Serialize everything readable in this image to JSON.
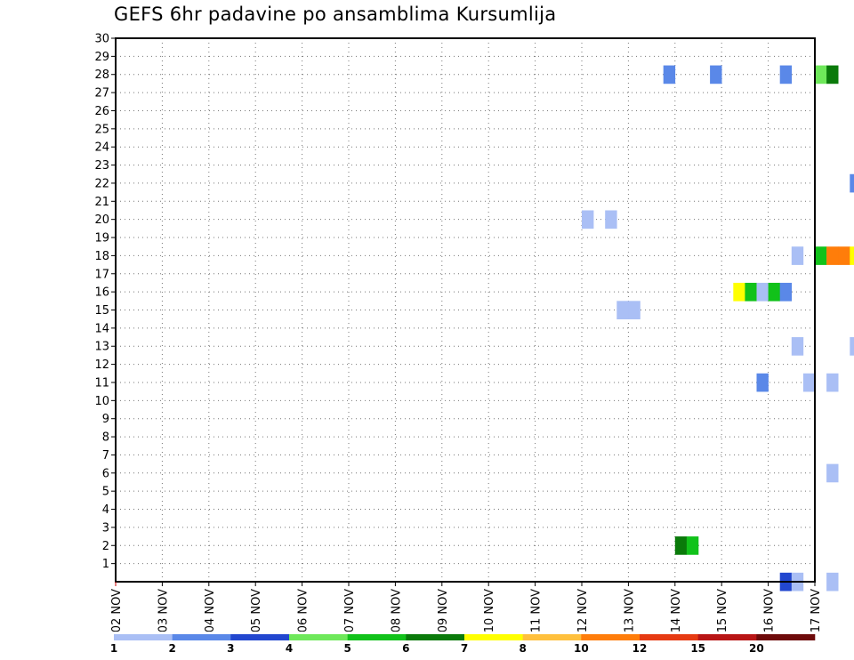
{
  "chart_data": {
    "type": "heatmap",
    "title": "GEFS 6hr padavine po ansamblima Kursumlija",
    "x_tick_labels": [
      "02 NOV",
      "03 NOV",
      "04 NOV",
      "05 NOV",
      "06 NOV",
      "07 NOV",
      "08 NOV",
      "09 NOV",
      "10 NOV",
      "11 NOV",
      "12 NOV",
      "13 NOV",
      "14 NOV",
      "15 NOV",
      "16 NOV",
      "17 NOV"
    ],
    "x_range_days": [
      0,
      15
    ],
    "y_tick_labels": [
      "1",
      "2",
      "3",
      "4",
      "5",
      "6",
      "7",
      "8",
      "9",
      "10",
      "11",
      "12",
      "13",
      "14",
      "15",
      "16",
      "17",
      "18",
      "19",
      "20",
      "21",
      "22",
      "23",
      "24",
      "25",
      "26",
      "27",
      "28",
      "29",
      "30"
    ],
    "y_range": [
      0,
      30
    ],
    "grid": true,
    "colorbar": {
      "bounds": [
        "1",
        "2",
        "3",
        "4",
        "5",
        "6",
        "7",
        "8",
        "10",
        "12",
        "15",
        "20"
      ],
      "colors": [
        "#aabff5",
        "#5a88e8",
        "#2247cf",
        "#6ee85a",
        "#11c21a",
        "#0a7a0a",
        "#ffff00",
        "#ffc03d",
        "#ff7d0a",
        "#e63a12",
        "#b81515",
        "#6e0a0a"
      ]
    },
    "cells": [
      {
        "member": 28,
        "day": 11.75,
        "class": 1
      },
      {
        "member": 28,
        "day": 12.75,
        "class": 1
      },
      {
        "member": 28,
        "day": 14.25,
        "class": 1
      },
      {
        "member": 28,
        "day": 15.0,
        "class": 3
      },
      {
        "member": 28,
        "day": 15.25,
        "class": 5
      },
      {
        "member": 22,
        "day": 15.75,
        "class": 1
      },
      {
        "member": 20,
        "day": 10.0,
        "class": 0
      },
      {
        "member": 20,
        "day": 10.5,
        "class": 0
      },
      {
        "member": 18,
        "day": 14.5,
        "class": 0
      },
      {
        "member": 18,
        "day": 15.0,
        "class": 4
      },
      {
        "member": 18,
        "day": 15.25,
        "class": 8
      },
      {
        "member": 18,
        "day": 15.5,
        "class": 8
      },
      {
        "member": 18,
        "day": 15.75,
        "class": 6
      },
      {
        "member": 16,
        "day": 13.25,
        "class": 6
      },
      {
        "member": 16,
        "day": 13.5,
        "class": 4
      },
      {
        "member": 16,
        "day": 13.75,
        "class": 0
      },
      {
        "member": 16,
        "day": 14.0,
        "class": 4
      },
      {
        "member": 16,
        "day": 14.25,
        "class": 1
      },
      {
        "member": 15,
        "day": 10.75,
        "class": 0
      },
      {
        "member": 15,
        "day": 11.0,
        "class": 0
      },
      {
        "member": 13,
        "day": 14.5,
        "class": 0
      },
      {
        "member": 13,
        "day": 15.75,
        "class": 0
      },
      {
        "member": 11,
        "day": 13.75,
        "class": 1
      },
      {
        "member": 11,
        "day": 14.75,
        "class": 0
      },
      {
        "member": 11,
        "day": 15.25,
        "class": 0
      },
      {
        "member": 6,
        "day": 15.25,
        "class": 0
      },
      {
        "member": 2,
        "day": 12.0,
        "class": 5
      },
      {
        "member": 2,
        "day": 12.25,
        "class": 4
      },
      {
        "member": 0,
        "day": 14.25,
        "class": 2
      },
      {
        "member": 0,
        "day": 14.5,
        "class": 0
      },
      {
        "member": 0,
        "day": 15.25,
        "class": 0
      }
    ]
  }
}
